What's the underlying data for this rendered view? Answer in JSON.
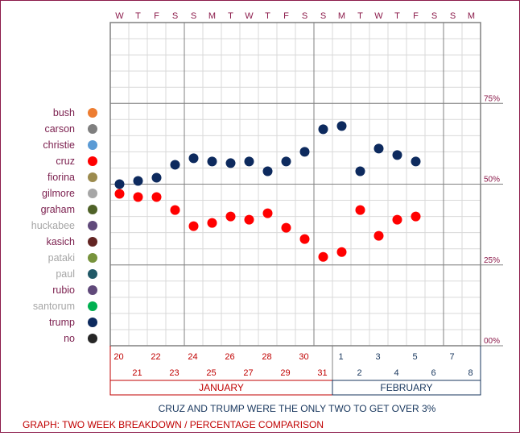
{
  "colors": {
    "frame": "#8b1a4a",
    "grid_minor": "#d9d9d9",
    "grid_major": "#808080",
    "cruz": "#ff0000",
    "trump": "#0d2a5e",
    "jan_text": "#c00000",
    "feb_text": "#17365d"
  },
  "chart_data": {
    "type": "scatter",
    "title": "",
    "day_of_week_labels": [
      "W",
      "T",
      "F",
      "S",
      "S",
      "M",
      "T",
      "W",
      "T",
      "F",
      "S",
      "S",
      "M",
      "T",
      "W",
      "T",
      "F",
      "S",
      "S",
      "M"
    ],
    "x": [
      "Jan 20",
      "Jan 21",
      "Jan 22",
      "Jan 23",
      "Jan 24",
      "Jan 25",
      "Jan 26",
      "Jan 27",
      "Jan 28",
      "Jan 29",
      "Jan 30",
      "Jan 31",
      "Feb 1",
      "Feb 2",
      "Feb 3",
      "Feb 4",
      "Feb 5",
      "Feb 6",
      "Feb 7",
      "Feb 8"
    ],
    "x_day_numbers": [
      "20",
      "21",
      "22",
      "23",
      "24",
      "25",
      "26",
      "27",
      "28",
      "29",
      "30",
      "31",
      "1",
      "2",
      "3",
      "4",
      "5",
      "6",
      "7",
      "8"
    ],
    "months": [
      {
        "label": "JANUARY",
        "start_index": 0,
        "end_index": 11
      },
      {
        "label": "FEBRUARY",
        "start_index": 12,
        "end_index": 19
      }
    ],
    "y_ticks": [
      {
        "value": 0,
        "label": "00%"
      },
      {
        "value": 25,
        "label": "25%"
      },
      {
        "value": 50,
        "label": "50%"
      },
      {
        "value": 75,
        "label": "75%"
      }
    ],
    "ylim": [
      0,
      100
    ],
    "y_unit": "percent",
    "grid": true,
    "legend_position": "left",
    "legend": [
      {
        "name": "bush",
        "color": "#ed7d31",
        "text_color": "#7b1f4e"
      },
      {
        "name": "carson",
        "color": "#7f7f7f",
        "text_color": "#7b1f4e"
      },
      {
        "name": "christie",
        "color": "#5b9bd5",
        "text_color": "#7b1f4e"
      },
      {
        "name": "cruz",
        "color": "#ff0000",
        "text_color": "#7b1f4e"
      },
      {
        "name": "fiorina",
        "color": "#9c8b4e",
        "text_color": "#7b1f4e"
      },
      {
        "name": "gilmore",
        "color": "#a6a6a6",
        "text_color": "#7b1f4e"
      },
      {
        "name": "graham",
        "color": "#4f6228",
        "text_color": "#7b1f4e"
      },
      {
        "name": "huckabee",
        "color": "#604a7b",
        "text_color": "#a6a6a6"
      },
      {
        "name": "kasich",
        "color": "#632523",
        "text_color": "#7b1f4e"
      },
      {
        "name": "pataki",
        "color": "#77933c",
        "text_color": "#a6a6a6"
      },
      {
        "name": "paul",
        "color": "#215967",
        "text_color": "#a6a6a6"
      },
      {
        "name": "rubio",
        "color": "#60497a",
        "text_color": "#7b1f4e"
      },
      {
        "name": "santorum",
        "color": "#00b050",
        "text_color": "#a6a6a6"
      },
      {
        "name": "trump",
        "color": "#0d2a5e",
        "text_color": "#7b1f4e"
      },
      {
        "name": "no",
        "color": "#262626",
        "text_color": "#7b1f4e"
      }
    ],
    "series": [
      {
        "name": "trump",
        "color": "#0d2a5e",
        "values": [
          50,
          51,
          52,
          56,
          58,
          57,
          56.5,
          57,
          54,
          57,
          60,
          67,
          68,
          54,
          61,
          59,
          57,
          null,
          null,
          null
        ]
      },
      {
        "name": "cruz",
        "color": "#ff0000",
        "values": [
          47,
          46,
          46,
          42,
          37,
          38,
          40,
          39,
          41,
          36.5,
          33,
          27.5,
          29,
          42,
          34,
          39,
          40,
          null,
          null,
          null
        ]
      }
    ]
  },
  "caption": "CRUZ AND TRUMP WERE THE ONLY TWO TO GET OVER 3%",
  "footer": "GRAPH: TWO WEEK BREAKDOWN / PERCENTAGE COMPARISON"
}
